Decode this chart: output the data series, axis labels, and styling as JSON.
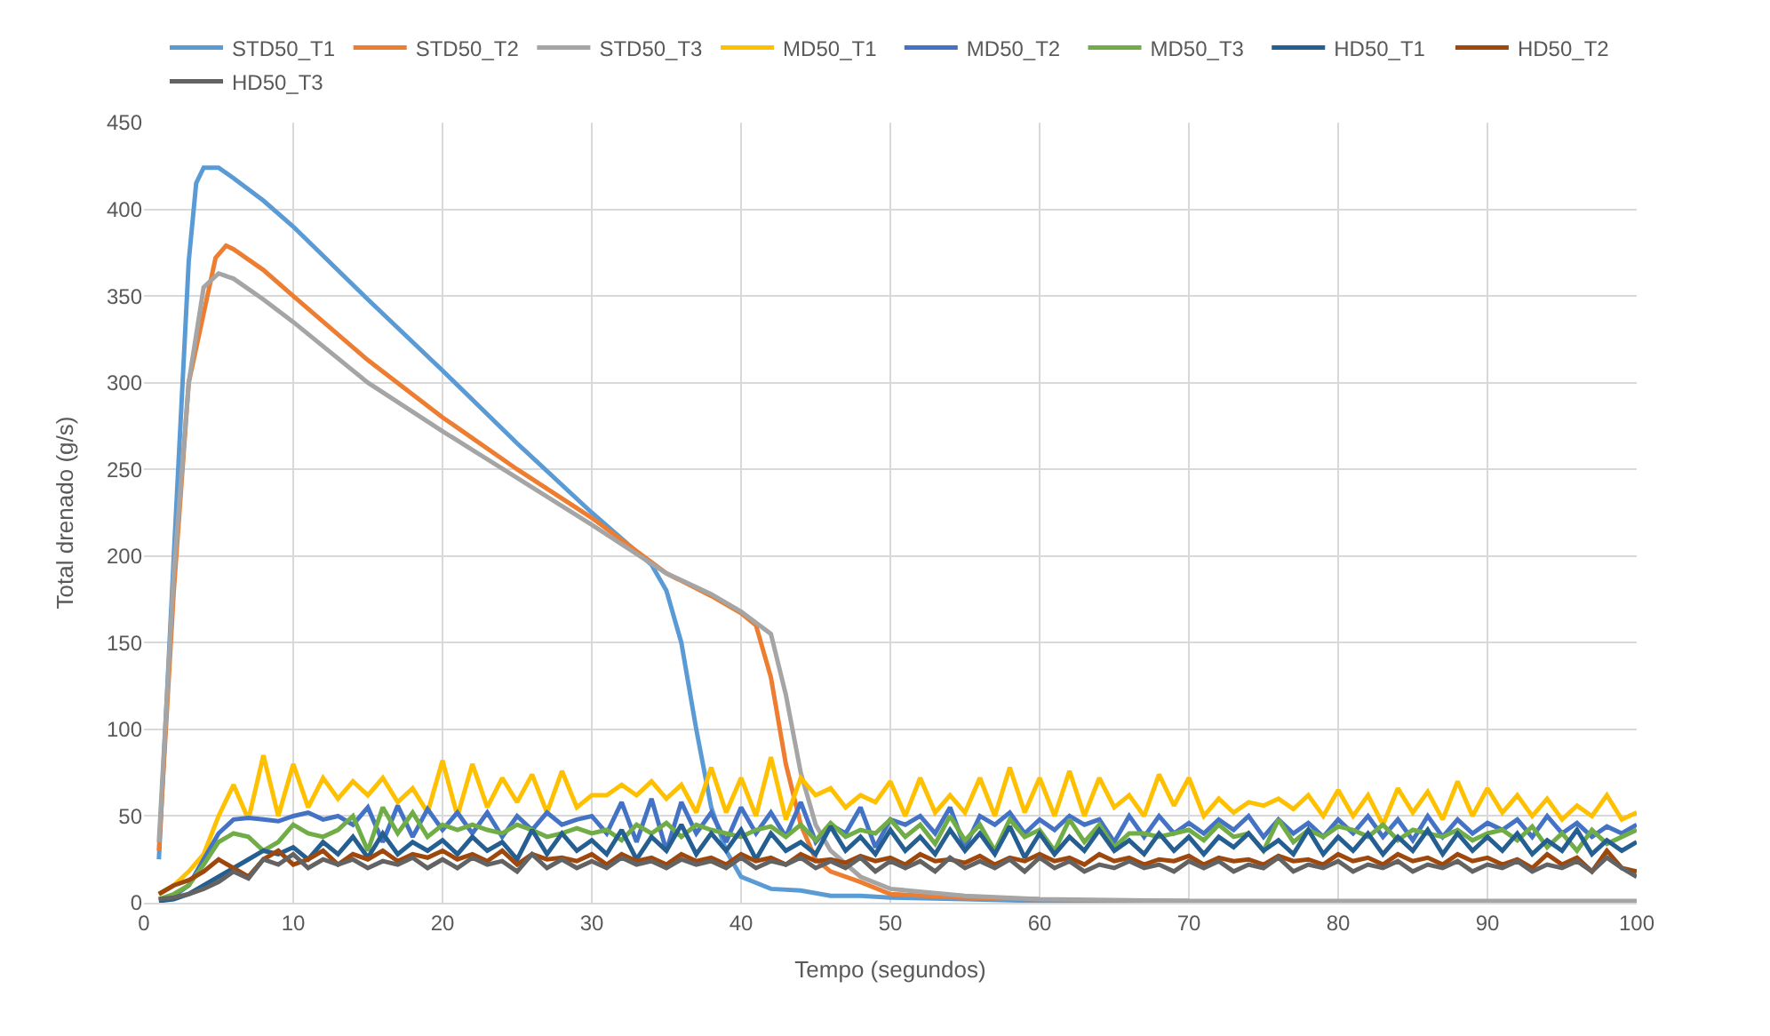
{
  "chart_data": {
    "type": "line",
    "xlabel": "Tempo (segundos)",
    "ylabel": "Total drenado (g/s)",
    "xlim": [
      0,
      100
    ],
    "xticks": [
      0,
      10,
      20,
      30,
      40,
      50,
      60,
      70,
      80,
      90,
      100
    ],
    "ylim": [
      0,
      450
    ],
    "yticks": [
      0,
      50,
      100,
      150,
      200,
      250,
      300,
      350,
      400,
      450
    ],
    "grid": true,
    "legend": "top",
    "marker": "none",
    "line_style": "solid",
    "x": [
      1,
      2,
      3,
      4,
      5,
      6,
      7,
      8,
      9,
      10,
      11,
      12,
      13,
      14,
      15,
      16,
      17,
      18,
      19,
      20,
      21,
      22,
      23,
      24,
      25,
      26,
      27,
      28,
      29,
      30,
      31,
      32,
      33,
      34,
      35,
      36,
      37,
      38,
      39,
      40,
      41,
      42,
      43,
      44,
      45,
      46,
      47,
      48,
      49,
      50,
      51,
      52,
      53,
      54,
      55,
      56,
      57,
      58,
      59,
      60,
      61,
      62,
      63,
      64,
      65,
      66,
      67,
      68,
      69,
      70,
      71,
      72,
      73,
      74,
      75,
      76,
      77,
      78,
      79,
      80,
      81,
      82,
      83,
      84,
      85,
      86,
      87,
      88,
      89,
      90,
      91,
      92,
      93,
      94,
      95,
      96,
      97,
      98,
      99,
      100
    ],
    "series": [
      {
        "name": "STD50_T1",
        "color": "#5b9bd5",
        "x": [
          1,
          2,
          3,
          3.5,
          4,
          5,
          6,
          8,
          10,
          15,
          20,
          25,
          30,
          34,
          35,
          36,
          37,
          38,
          39,
          40,
          42,
          44,
          46,
          48,
          50,
          55,
          60,
          70
        ],
        "values": [
          25,
          200,
          370,
          415,
          424,
          424,
          418,
          405,
          390,
          348,
          307,
          265,
          225,
          195,
          180,
          150,
          100,
          55,
          30,
          15,
          8,
          7,
          4,
          4,
          3,
          2,
          1,
          1
        ]
      },
      {
        "name": "STD50_T2",
        "color": "#ed7d31",
        "x": [
          1,
          2,
          3,
          4,
          4.8,
          5.5,
          6,
          8,
          10,
          15,
          20,
          25,
          30,
          35,
          38,
          40,
          41,
          42,
          43,
          44,
          45,
          46,
          48,
          50,
          55,
          60
        ],
        "values": [
          30,
          180,
          300,
          340,
          372,
          379,
          377,
          365,
          350,
          313,
          280,
          250,
          222,
          190,
          177,
          167,
          160,
          130,
          80,
          45,
          25,
          18,
          12,
          5,
          3,
          2
        ]
      },
      {
        "name": "STD50_T3",
        "color": "#a5a5a5",
        "x": [
          1,
          2,
          3,
          4,
          5,
          6,
          8,
          10,
          15,
          20,
          25,
          30,
          35,
          38,
          40,
          42,
          43,
          44,
          45,
          46,
          48,
          50,
          55,
          60,
          70,
          80,
          90,
          100
        ],
        "values": [
          35,
          190,
          300,
          355,
          363,
          360,
          348,
          335,
          300,
          272,
          245,
          218,
          190,
          178,
          168,
          155,
          120,
          75,
          45,
          30,
          15,
          8,
          4,
          2,
          1,
          1,
          1,
          1
        ]
      },
      {
        "name": "MD50_T1",
        "color": "#ffc000",
        "values": [
          5,
          10,
          18,
          28,
          50,
          68,
          48,
          85,
          50,
          80,
          55,
          72,
          60,
          70,
          62,
          72,
          58,
          66,
          52,
          82,
          50,
          80,
          55,
          72,
          58,
          74,
          52,
          76,
          55,
          62,
          62,
          68,
          62,
          70,
          60,
          68,
          52,
          78,
          52,
          72,
          50,
          84,
          48,
          72,
          62,
          66,
          55,
          62,
          58,
          70,
          50,
          72,
          52,
          62,
          52,
          72,
          50,
          78,
          52,
          72,
          50,
          76,
          50,
          72,
          55,
          62,
          50,
          74,
          56,
          72,
          50,
          60,
          52,
          58,
          56,
          60,
          54,
          62,
          50,
          65,
          50,
          62,
          45,
          66,
          52,
          64,
          48,
          70,
          50,
          66,
          52,
          62,
          50,
          60,
          48,
          56,
          50,
          62,
          48,
          52
        ]
      },
      {
        "name": "MD50_T2",
        "color": "#4472c4",
        "values": [
          2,
          4,
          10,
          25,
          40,
          48,
          49,
          48,
          47,
          50,
          52,
          48,
          50,
          45,
          55,
          35,
          56,
          38,
          54,
          42,
          52,
          40,
          52,
          38,
          50,
          42,
          52,
          45,
          48,
          50,
          40,
          58,
          35,
          60,
          30,
          58,
          40,
          52,
          35,
          55,
          40,
          52,
          38,
          58,
          35,
          45,
          40,
          55,
          32,
          48,
          45,
          50,
          40,
          55,
          32,
          50,
          45,
          52,
          40,
          48,
          42,
          50,
          45,
          48,
          35,
          50,
          38,
          50,
          40,
          46,
          40,
          48,
          42,
          50,
          38,
          48,
          40,
          46,
          38,
          48,
          40,
          50,
          38,
          48,
          36,
          50,
          38,
          48,
          40,
          46,
          42,
          48,
          38,
          50,
          40,
          46,
          38,
          44,
          40,
          45
        ]
      },
      {
        "name": "MD50_T3",
        "color": "#70ad47",
        "values": [
          2,
          5,
          10,
          22,
          35,
          40,
          38,
          30,
          35,
          45,
          40,
          38,
          42,
          50,
          30,
          55,
          40,
          52,
          38,
          45,
          42,
          45,
          42,
          40,
          45,
          42,
          38,
          40,
          43,
          40,
          42,
          36,
          45,
          40,
          46,
          38,
          45,
          42,
          40,
          38,
          42,
          44,
          38,
          45,
          36,
          46,
          38,
          42,
          40,
          48,
          38,
          45,
          34,
          50,
          36,
          45,
          30,
          48,
          38,
          42,
          30,
          48,
          35,
          45,
          32,
          40,
          40,
          38,
          40,
          42,
          36,
          45,
          38,
          40,
          30,
          48,
          35,
          42,
          38,
          44,
          42,
          38,
          45,
          36,
          42,
          40,
          38,
          42,
          36,
          40,
          42,
          36,
          44,
          32,
          40,
          30,
          42,
          34,
          38,
          42
        ]
      },
      {
        "name": "HD50_T1",
        "color": "#255e91",
        "values": [
          1,
          2,
          5,
          10,
          15,
          20,
          25,
          30,
          28,
          32,
          25,
          35,
          28,
          38,
          26,
          40,
          28,
          35,
          30,
          36,
          28,
          38,
          30,
          35,
          25,
          42,
          28,
          40,
          30,
          36,
          28,
          42,
          25,
          38,
          30,
          45,
          28,
          40,
          30,
          42,
          25,
          40,
          30,
          35,
          28,
          44,
          30,
          38,
          28,
          42,
          30,
          38,
          28,
          42,
          30,
          40,
          28,
          44,
          26,
          40,
          28,
          38,
          30,
          42,
          30,
          36,
          28,
          40,
          30,
          38,
          28,
          38,
          32,
          40,
          30,
          36,
          28,
          42,
          28,
          38,
          30,
          40,
          28,
          38,
          30,
          42,
          28,
          40,
          30,
          38,
          30,
          40,
          28,
          36,
          30,
          42,
          28,
          36,
          30,
          35
        ]
      },
      {
        "name": "HD50_T2",
        "color": "#9e480e",
        "values": [
          5,
          10,
          13,
          18,
          25,
          20,
          15,
          25,
          30,
          22,
          25,
          30,
          22,
          28,
          25,
          30,
          24,
          28,
          26,
          30,
          25,
          28,
          24,
          30,
          22,
          28,
          25,
          26,
          24,
          28,
          22,
          28,
          24,
          26,
          22,
          28,
          24,
          26,
          22,
          28,
          24,
          26,
          22,
          28,
          24,
          25,
          23,
          27,
          24,
          26,
          22,
          28,
          24,
          25,
          23,
          27,
          22,
          26,
          24,
          28,
          24,
          26,
          22,
          28,
          24,
          26,
          22,
          25,
          24,
          27,
          22,
          26,
          24,
          25,
          22,
          27,
          24,
          25,
          22,
          28,
          24,
          26,
          22,
          28,
          24,
          26,
          22,
          28,
          24,
          26,
          22,
          25,
          20,
          28,
          22,
          26,
          18,
          30,
          20,
          18
        ]
      },
      {
        "name": "HD50_T3",
        "color": "#636363",
        "values": [
          2,
          3,
          5,
          8,
          12,
          18,
          14,
          25,
          22,
          28,
          20,
          25,
          22,
          25,
          20,
          24,
          22,
          26,
          20,
          25,
          20,
          26,
          22,
          24,
          18,
          28,
          20,
          25,
          20,
          24,
          20,
          26,
          22,
          24,
          20,
          25,
          22,
          24,
          20,
          26,
          20,
          24,
          22,
          26,
          20,
          24,
          20,
          26,
          18,
          24,
          20,
          24,
          18,
          26,
          20,
          24,
          20,
          25,
          18,
          26,
          20,
          24,
          18,
          22,
          20,
          24,
          20,
          22,
          18,
          24,
          20,
          24,
          18,
          22,
          20,
          26,
          18,
          22,
          20,
          24,
          18,
          22,
          20,
          24,
          18,
          22,
          20,
          24,
          18,
          22,
          20,
          24,
          18,
          22,
          20,
          24,
          18,
          26,
          20,
          15
        ]
      }
    ]
  }
}
